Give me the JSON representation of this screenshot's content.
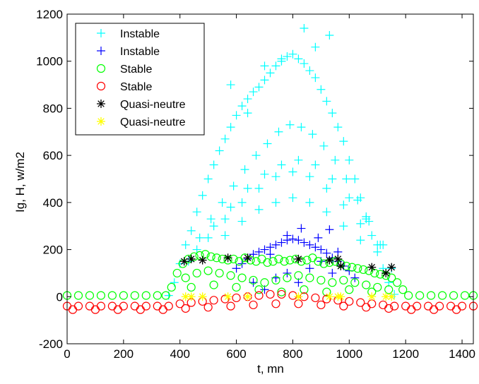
{
  "chart_data": {
    "type": "scatter",
    "xlabel": "t, mn",
    "ylabel": "Ig, H, w/m2",
    "xlim": [
      0,
      1440
    ],
    "ylim": [
      -200,
      1200
    ],
    "xticks": [
      "0",
      "200",
      "400",
      "600",
      "800",
      "1000",
      "1200",
      "1400"
    ],
    "yticks": [
      "-200",
      "0",
      "200",
      "400",
      "600",
      "800",
      "1000",
      "1200"
    ],
    "xtick_values": [
      0,
      200,
      400,
      600,
      800,
      1000,
      1200,
      1400
    ],
    "ytick_values": [
      -200,
      0,
      200,
      400,
      600,
      800,
      1000,
      1200
    ],
    "grid": false,
    "legend_position": "top-left",
    "series": [
      {
        "name": "Instable",
        "marker": "plus",
        "color": "#00ffff",
        "points": [
          [
            360,
            5
          ],
          [
            380,
            60
          ],
          [
            400,
            140
          ],
          [
            420,
            220
          ],
          [
            440,
            280
          ],
          [
            460,
            360
          ],
          [
            480,
            430
          ],
          [
            500,
            500
          ],
          [
            520,
            560
          ],
          [
            540,
            620
          ],
          [
            560,
            670
          ],
          [
            580,
            720
          ],
          [
            600,
            770
          ],
          [
            620,
            810
          ],
          [
            640,
            840
          ],
          [
            660,
            870
          ],
          [
            680,
            890
          ],
          [
            700,
            920
          ],
          [
            720,
            950
          ],
          [
            740,
            980
          ],
          [
            760,
            1000
          ],
          [
            780,
            1020
          ],
          [
            800,
            1030
          ],
          [
            820,
            1010
          ],
          [
            840,
            990
          ],
          [
            860,
            960
          ],
          [
            880,
            930
          ],
          [
            900,
            880
          ],
          [
            920,
            830
          ],
          [
            940,
            780
          ],
          [
            960,
            720
          ],
          [
            980,
            660
          ],
          [
            1000,
            580
          ],
          [
            1020,
            500
          ],
          [
            1040,
            420
          ],
          [
            1060,
            340
          ],
          [
            1080,
            260
          ],
          [
            1100,
            190
          ],
          [
            1120,
            120
          ],
          [
            1140,
            60
          ],
          [
            1160,
            10
          ],
          [
            430,
            150
          ],
          [
            470,
            250
          ],
          [
            510,
            330
          ],
          [
            550,
            400
          ],
          [
            590,
            470
          ],
          [
            630,
            540
          ],
          [
            670,
            600
          ],
          [
            710,
            650
          ],
          [
            750,
            700
          ],
          [
            790,
            730
          ],
          [
            830,
            720
          ],
          [
            870,
            690
          ],
          [
            910,
            640
          ],
          [
            950,
            580
          ],
          [
            990,
            500
          ],
          [
            1030,
            410
          ],
          [
            1070,
            320
          ],
          [
            1110,
            220
          ],
          [
            1150,
            120
          ],
          [
            460,
            200
          ],
          [
            520,
            300
          ],
          [
            580,
            380
          ],
          [
            640,
            460
          ],
          [
            700,
            520
          ],
          [
            760,
            560
          ],
          [
            820,
            580
          ],
          [
            880,
            560
          ],
          [
            940,
            500
          ],
          [
            1000,
            420
          ],
          [
            1060,
            330
          ],
          [
            1120,
            220
          ],
          [
            500,
            250
          ],
          [
            560,
            330
          ],
          [
            620,
            400
          ],
          [
            680,
            460
          ],
          [
            740,
            510
          ],
          [
            800,
            530
          ],
          [
            860,
            510
          ],
          [
            920,
            460
          ],
          [
            980,
            390
          ],
          [
            1040,
            310
          ],
          [
            1100,
            220
          ],
          [
            560,
            260
          ],
          [
            620,
            320
          ],
          [
            680,
            370
          ],
          [
            740,
            400
          ],
          [
            800,
            420
          ],
          [
            860,
            400
          ],
          [
            920,
            360
          ],
          [
            980,
            300
          ],
          [
            1040,
            240
          ],
          [
            580,
            900
          ],
          [
            640,
            780
          ],
          [
            700,
            980
          ],
          [
            760,
            1010
          ],
          [
            840,
            1140
          ],
          [
            930,
            1110
          ],
          [
            880,
            1060
          ]
        ]
      },
      {
        "name": "Instable",
        "marker": "plus",
        "color": "#0000ff",
        "points": [
          [
            600,
            120
          ],
          [
            620,
            140
          ],
          [
            640,
            160
          ],
          [
            660,
            180
          ],
          [
            680,
            190
          ],
          [
            700,
            200
          ],
          [
            720,
            210
          ],
          [
            740,
            220
          ],
          [
            760,
            230
          ],
          [
            780,
            240
          ],
          [
            800,
            245
          ],
          [
            820,
            240
          ],
          [
            840,
            230
          ],
          [
            860,
            220
          ],
          [
            880,
            210
          ],
          [
            900,
            200
          ],
          [
            920,
            185
          ],
          [
            940,
            165
          ],
          [
            960,
            150
          ],
          [
            980,
            130
          ],
          [
            1000,
            110
          ],
          [
            1020,
            80
          ],
          [
            660,
            60
          ],
          [
            700,
            30
          ],
          [
            740,
            80
          ],
          [
            780,
            100
          ],
          [
            820,
            60
          ],
          [
            860,
            120
          ],
          [
            900,
            150
          ],
          [
            940,
            100
          ],
          [
            830,
            290
          ],
          [
            930,
            285
          ],
          [
            890,
            250
          ],
          [
            780,
            260
          ],
          [
            720,
            180
          ],
          [
            960,
            190
          ]
        ]
      },
      {
        "name": "Stable",
        "marker": "circle",
        "color": "#00ff00",
        "points": [
          [
            0,
            5
          ],
          [
            40,
            5
          ],
          [
            80,
            5
          ],
          [
            120,
            5
          ],
          [
            160,
            5
          ],
          [
            200,
            5
          ],
          [
            240,
            5
          ],
          [
            280,
            5
          ],
          [
            320,
            5
          ],
          [
            350,
            5
          ],
          [
            370,
            40
          ],
          [
            390,
            100
          ],
          [
            410,
            140
          ],
          [
            430,
            160
          ],
          [
            450,
            170
          ],
          [
            470,
            175
          ],
          [
            490,
            180
          ],
          [
            510,
            170
          ],
          [
            530,
            165
          ],
          [
            550,
            160
          ],
          [
            570,
            155
          ],
          [
            590,
            160
          ],
          [
            610,
            150
          ],
          [
            630,
            165
          ],
          [
            650,
            155
          ],
          [
            670,
            150
          ],
          [
            690,
            160
          ],
          [
            710,
            145
          ],
          [
            730,
            150
          ],
          [
            750,
            160
          ],
          [
            770,
            150
          ],
          [
            790,
            155
          ],
          [
            810,
            160
          ],
          [
            830,
            150
          ],
          [
            850,
            155
          ],
          [
            870,
            165
          ],
          [
            890,
            150
          ],
          [
            910,
            140
          ],
          [
            930,
            145
          ],
          [
            950,
            150
          ],
          [
            970,
            140
          ],
          [
            990,
            130
          ],
          [
            1010,
            125
          ],
          [
            1030,
            120
          ],
          [
            1050,
            115
          ],
          [
            1070,
            110
          ],
          [
            1090,
            100
          ],
          [
            1110,
            95
          ],
          [
            1130,
            90
          ],
          [
            1150,
            80
          ],
          [
            1170,
            60
          ],
          [
            1190,
            30
          ],
          [
            1210,
            5
          ],
          [
            1250,
            5
          ],
          [
            1290,
            5
          ],
          [
            1330,
            5
          ],
          [
            1370,
            5
          ],
          [
            1410,
            5
          ],
          [
            1440,
            5
          ],
          [
            420,
            80
          ],
          [
            460,
            100
          ],
          [
            500,
            110
          ],
          [
            540,
            100
          ],
          [
            580,
            90
          ],
          [
            620,
            80
          ],
          [
            660,
            70
          ],
          [
            700,
            60
          ],
          [
            740,
            70
          ],
          [
            780,
            80
          ],
          [
            820,
            90
          ],
          [
            860,
            80
          ],
          [
            900,
            70
          ],
          [
            940,
            60
          ],
          [
            980,
            70
          ],
          [
            1020,
            60
          ],
          [
            1060,
            50
          ],
          [
            1100,
            40
          ],
          [
            1140,
            30
          ],
          [
            440,
            40
          ],
          [
            520,
            50
          ],
          [
            600,
            40
          ],
          [
            680,
            30
          ],
          [
            760,
            20
          ],
          [
            840,
            30
          ],
          [
            920,
            20
          ],
          [
            1000,
            30
          ],
          [
            1080,
            20
          ]
        ]
      },
      {
        "name": "Stable",
        "marker": "circle",
        "color": "#ff0000",
        "points": [
          [
            0,
            -40
          ],
          [
            40,
            -40
          ],
          [
            80,
            -40
          ],
          [
            120,
            -40
          ],
          [
            160,
            -40
          ],
          [
            200,
            -40
          ],
          [
            240,
            -40
          ],
          [
            280,
            -40
          ],
          [
            320,
            -40
          ],
          [
            360,
            -40
          ],
          [
            400,
            -30
          ],
          [
            440,
            -25
          ],
          [
            480,
            -20
          ],
          [
            520,
            -15
          ],
          [
            560,
            -10
          ],
          [
            600,
            -5
          ],
          [
            640,
            0
          ],
          [
            680,
            5
          ],
          [
            720,
            10
          ],
          [
            760,
            10
          ],
          [
            800,
            5
          ],
          [
            840,
            0
          ],
          [
            880,
            -5
          ],
          [
            920,
            -10
          ],
          [
            960,
            -15
          ],
          [
            1000,
            -20
          ],
          [
            1040,
            -25
          ],
          [
            1080,
            -30
          ],
          [
            1120,
            -35
          ],
          [
            1160,
            -40
          ],
          [
            1200,
            -40
          ],
          [
            1240,
            -40
          ],
          [
            1280,
            -40
          ],
          [
            1320,
            -40
          ],
          [
            1360,
            -40
          ],
          [
            1400,
            -40
          ],
          [
            1440,
            -40
          ],
          [
            20,
            -55
          ],
          [
            100,
            -55
          ],
          [
            180,
            -55
          ],
          [
            260,
            -55
          ],
          [
            340,
            -55
          ],
          [
            420,
            -50
          ],
          [
            500,
            -45
          ],
          [
            580,
            -40
          ],
          [
            660,
            -35
          ],
          [
            740,
            -30
          ],
          [
            820,
            -30
          ],
          [
            900,
            -35
          ],
          [
            980,
            -40
          ],
          [
            1060,
            -45
          ],
          [
            1140,
            -50
          ],
          [
            1220,
            -55
          ],
          [
            1300,
            -55
          ],
          [
            1380,
            -55
          ]
        ]
      },
      {
        "name": "Quasi-neutre",
        "marker": "star",
        "color": "#000000",
        "points": [
          [
            415,
            150
          ],
          [
            440,
            160
          ],
          [
            480,
            155
          ],
          [
            570,
            165
          ],
          [
            640,
            165
          ],
          [
            820,
            160
          ],
          [
            930,
            155
          ],
          [
            960,
            160
          ],
          [
            970,
            130
          ],
          [
            1080,
            125
          ],
          [
            1130,
            100
          ],
          [
            1150,
            125
          ]
        ]
      },
      {
        "name": "Quasi-neutre",
        "marker": "star",
        "color": "#ffff00",
        "points": [
          [
            420,
            0
          ],
          [
            440,
            0
          ],
          [
            480,
            0
          ],
          [
            570,
            0
          ],
          [
            640,
            0
          ],
          [
            820,
            0
          ],
          [
            930,
            0
          ],
          [
            960,
            0
          ],
          [
            970,
            0
          ],
          [
            1080,
            0
          ],
          [
            1130,
            0
          ],
          [
            1150,
            0
          ]
        ]
      }
    ]
  }
}
